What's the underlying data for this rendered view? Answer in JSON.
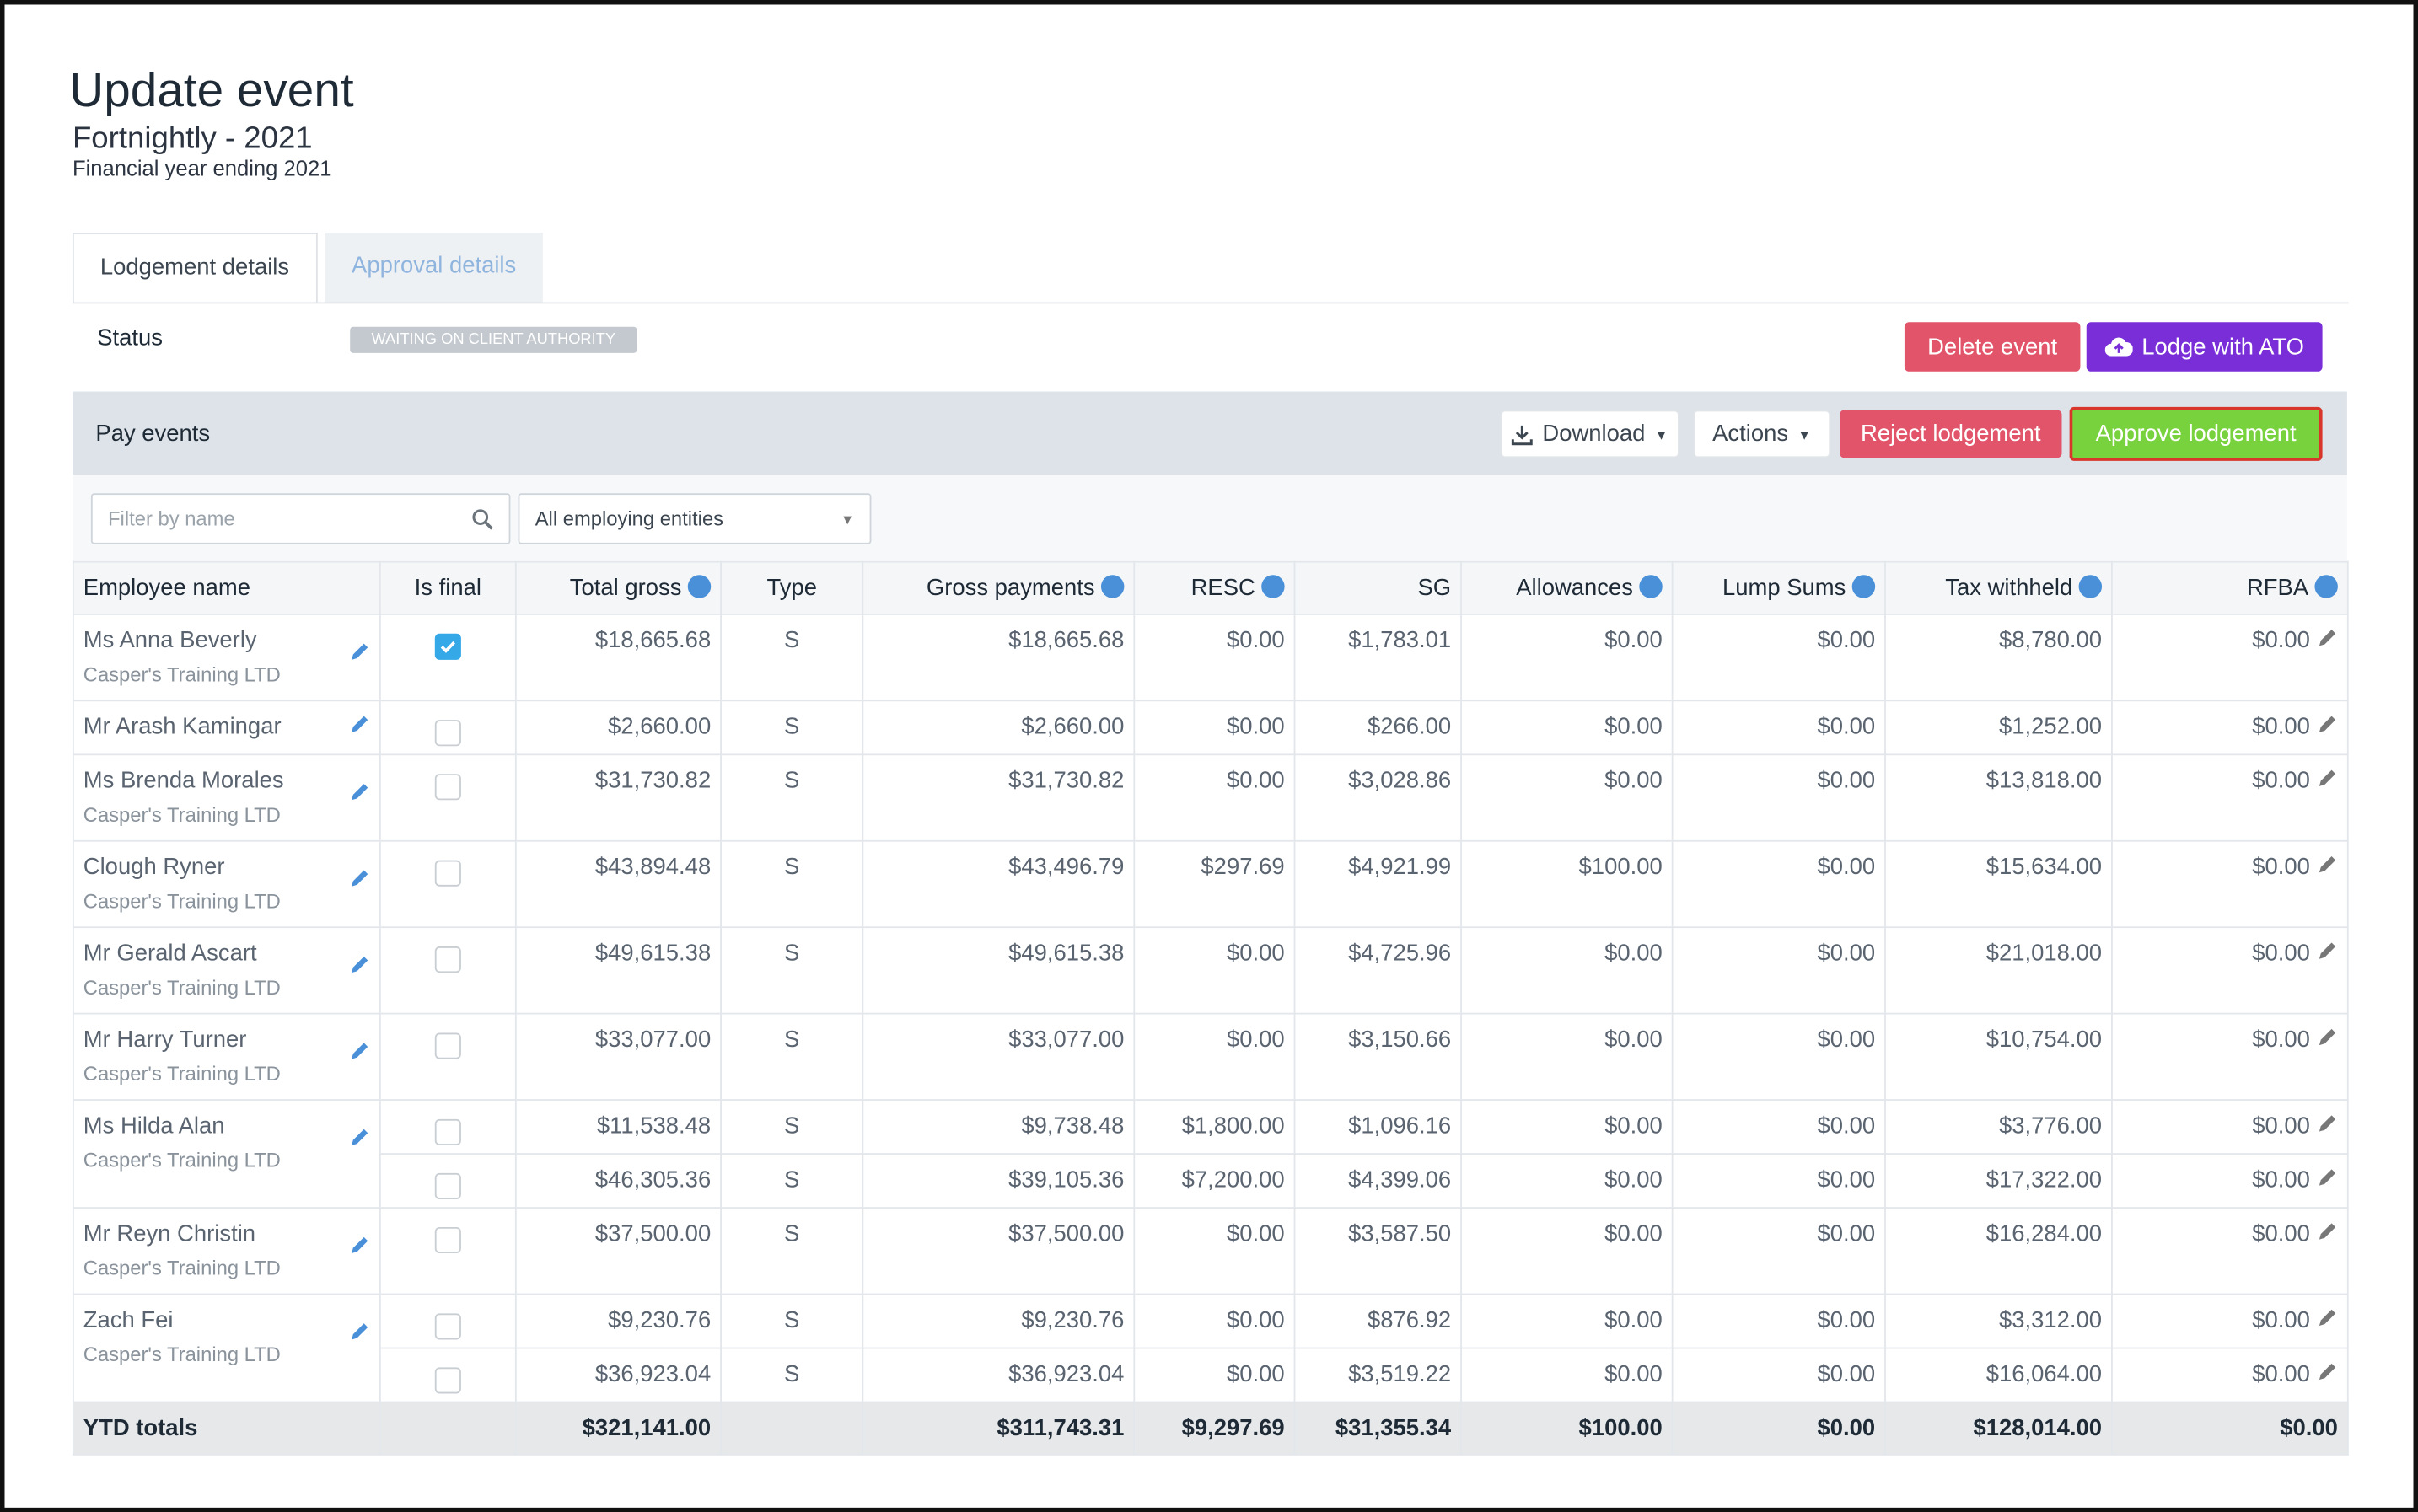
{
  "header": {
    "title": "Update event",
    "subtitle": "Fortnightly - 2021",
    "fiscal_year": "Financial year ending 2021"
  },
  "tabs": [
    {
      "label": "Lodgement details",
      "active": true
    },
    {
      "label": "Approval details",
      "active": false
    }
  ],
  "status": {
    "label": "Status",
    "badge": "WAITING ON CLIENT AUTHORITY"
  },
  "top_buttons": {
    "delete": "Delete event",
    "lodge": "Lodge with ATO"
  },
  "panel": {
    "title": "Pay events",
    "download": "Download",
    "actions": "Actions",
    "reject": "Reject lodgement",
    "approve": "Approve lodgement",
    "filter_placeholder": "Filter by name",
    "entity_select": "All employing entities"
  },
  "table": {
    "columns": [
      {
        "label": "Employee name",
        "info": false,
        "align": "left"
      },
      {
        "label": "Is final",
        "info": false,
        "align": "center"
      },
      {
        "label": "Total gross",
        "info": true,
        "align": "right"
      },
      {
        "label": "Type",
        "info": false,
        "align": "center"
      },
      {
        "label": "Gross payments",
        "info": true,
        "align": "right"
      },
      {
        "label": "RESC",
        "info": true,
        "align": "right"
      },
      {
        "label": "SG",
        "info": false,
        "align": "right"
      },
      {
        "label": "Allowances",
        "info": true,
        "align": "right"
      },
      {
        "label": "Lump Sums",
        "info": true,
        "align": "right"
      },
      {
        "label": "Tax withheld",
        "info": true,
        "align": "right"
      },
      {
        "label": "RFBA",
        "info": true,
        "align": "right"
      }
    ],
    "employees": [
      {
        "name": "Ms Anna Beverly",
        "company": "Casper's Training LTD",
        "lines": [
          {
            "is_final": true,
            "cells": [
              "$18,665.68",
              "S",
              "$18,665.68",
              "$0.00",
              "$1,783.01",
              "$0.00",
              "$0.00",
              "$8,780.00",
              "$0.00"
            ]
          }
        ]
      },
      {
        "name": "Mr Arash Kamingar",
        "company": null,
        "lines": [
          {
            "is_final": false,
            "cells": [
              "$2,660.00",
              "S",
              "$2,660.00",
              "$0.00",
              "$266.00",
              "$0.00",
              "$0.00",
              "$1,252.00",
              "$0.00"
            ]
          }
        ]
      },
      {
        "name": "Ms Brenda Morales",
        "company": "Casper's Training LTD",
        "lines": [
          {
            "is_final": false,
            "cells": [
              "$31,730.82",
              "S",
              "$31,730.82",
              "$0.00",
              "$3,028.86",
              "$0.00",
              "$0.00",
              "$13,818.00",
              "$0.00"
            ]
          }
        ]
      },
      {
        "name": "Clough Ryner",
        "company": "Casper's Training LTD",
        "lines": [
          {
            "is_final": false,
            "cells": [
              "$43,894.48",
              "S",
              "$43,496.79",
              "$297.69",
              "$4,921.99",
              "$100.00",
              "$0.00",
              "$15,634.00",
              "$0.00"
            ]
          }
        ]
      },
      {
        "name": "Mr Gerald Ascart",
        "company": "Casper's Training LTD",
        "lines": [
          {
            "is_final": false,
            "cells": [
              "$49,615.38",
              "S",
              "$49,615.38",
              "$0.00",
              "$4,725.96",
              "$0.00",
              "$0.00",
              "$21,018.00",
              "$0.00"
            ]
          }
        ]
      },
      {
        "name": "Mr Harry Turner",
        "company": "Casper's Training LTD",
        "lines": [
          {
            "is_final": false,
            "cells": [
              "$33,077.00",
              "S",
              "$33,077.00",
              "$0.00",
              "$3,150.66",
              "$0.00",
              "$0.00",
              "$10,754.00",
              "$0.00"
            ]
          }
        ]
      },
      {
        "name": "Ms Hilda Alan",
        "company": "Casper's Training LTD",
        "lines": [
          {
            "is_final": false,
            "cells": [
              "$11,538.48",
              "S",
              "$9,738.48",
              "$1,800.00",
              "$1,096.16",
              "$0.00",
              "$0.00",
              "$3,776.00",
              "$0.00"
            ]
          },
          {
            "is_final": false,
            "cells": [
              "$46,305.36",
              "S",
              "$39,105.36",
              "$7,200.00",
              "$4,399.06",
              "$0.00",
              "$0.00",
              "$17,322.00",
              "$0.00"
            ]
          }
        ]
      },
      {
        "name": "Mr Reyn Christin",
        "company": "Casper's Training LTD",
        "lines": [
          {
            "is_final": false,
            "cells": [
              "$37,500.00",
              "S",
              "$37,500.00",
              "$0.00",
              "$3,587.50",
              "$0.00",
              "$0.00",
              "$16,284.00",
              "$0.00"
            ]
          }
        ]
      },
      {
        "name": "Zach Fei",
        "company": "Casper's Training LTD",
        "lines": [
          {
            "is_final": false,
            "cells": [
              "$9,230.76",
              "S",
              "$9,230.76",
              "$0.00",
              "$876.92",
              "$0.00",
              "$0.00",
              "$3,312.00",
              "$0.00"
            ]
          },
          {
            "is_final": false,
            "cells": [
              "$36,923.04",
              "S",
              "$36,923.04",
              "$0.00",
              "$3,519.22",
              "$0.00",
              "$0.00",
              "$16,064.00",
              "$0.00"
            ]
          }
        ]
      }
    ],
    "totals": {
      "label": "YTD totals",
      "cells": [
        "$321,141.00",
        null,
        "$311,743.31",
        "$9,297.69",
        "$31,355.34",
        "$100.00",
        "$0.00",
        "$128,014.00",
        "$0.00"
      ]
    }
  }
}
